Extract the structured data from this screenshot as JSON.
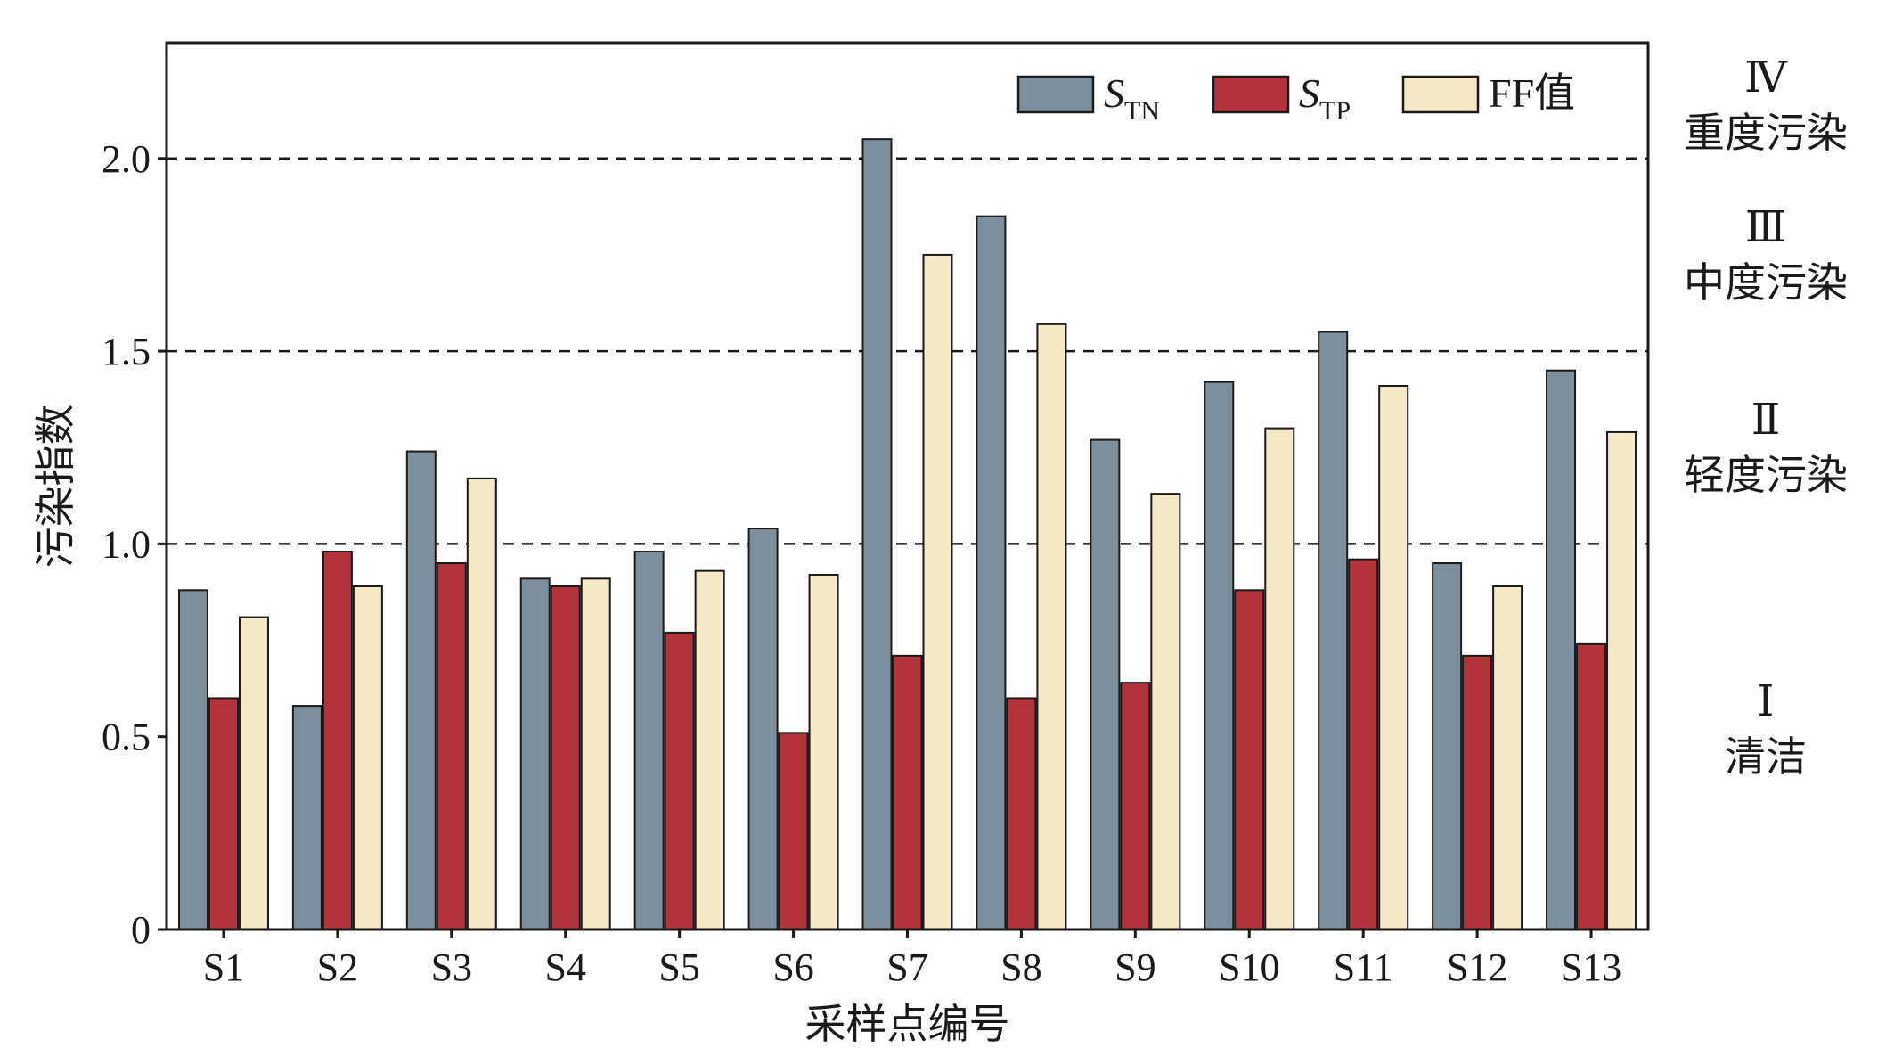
{
  "chart_data": {
    "type": "bar",
    "title": "",
    "xlabel": "采样点编号",
    "ylabel": "污染指数",
    "categories": [
      "S1",
      "S2",
      "S3",
      "S4",
      "S5",
      "S6",
      "S7",
      "S8",
      "S9",
      "S10",
      "S11",
      "S12",
      "S13"
    ],
    "series": [
      {
        "name": "S_TN",
        "name_main": "S",
        "name_sub": "TN",
        "color": "#7d8f9c",
        "values": [
          0.88,
          0.58,
          1.24,
          0.91,
          0.98,
          1.04,
          2.05,
          1.85,
          1.27,
          1.42,
          1.55,
          0.95,
          1.45
        ]
      },
      {
        "name": "S_TP",
        "name_main": "S",
        "name_sub": "TP",
        "color": "#b3333b",
        "values": [
          0.6,
          0.98,
          0.95,
          0.89,
          0.77,
          0.51,
          0.71,
          0.6,
          0.64,
          0.88,
          0.96,
          0.71,
          0.74
        ]
      },
      {
        "name": "FF值",
        "name_main": "FF值",
        "name_sub": "",
        "color": "#f5e8c6",
        "values": [
          0.81,
          0.89,
          1.17,
          0.91,
          0.93,
          0.92,
          1.75,
          1.57,
          1.13,
          1.3,
          1.41,
          0.89,
          1.29
        ]
      }
    ],
    "ylim": [
      0,
      2.3
    ],
    "yticks": [
      0,
      0.5,
      1.0,
      1.5,
      2.0
    ],
    "ytick_labels": [
      "0",
      "0.5",
      "1.0",
      "1.5",
      "2.0"
    ],
    "thresholds": [
      1.0,
      1.5,
      2.0
    ],
    "legend_position": "top-right",
    "grid": false,
    "zones": [
      {
        "level": "Ⅳ",
        "label": "重度污染"
      },
      {
        "level": "Ⅲ",
        "label": "中度污染"
      },
      {
        "level": "Ⅱ",
        "label": "轻度污染"
      },
      {
        "level": "Ⅰ",
        "label": "清洁"
      }
    ]
  }
}
